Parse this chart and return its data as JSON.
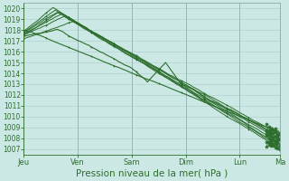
{
  "background_color": "#cce8e4",
  "grid_color": "#aaccc8",
  "line_color": "#2d6e2d",
  "ylim": [
    1006.5,
    1020.5
  ],
  "yticks": [
    1007,
    1008,
    1009,
    1010,
    1011,
    1012,
    1013,
    1014,
    1015,
    1016,
    1017,
    1018,
    1019,
    1020
  ],
  "xlabel": "Pression niveau de la mer( hPa )",
  "xlabel_fontsize": 7.5,
  "xtick_labels": [
    "Jeu",
    "Ven",
    "Sam",
    "Dim",
    "Lun",
    "Ma"
  ],
  "xtick_positions": [
    0,
    24,
    48,
    72,
    96,
    114
  ],
  "n_hours": 115
}
